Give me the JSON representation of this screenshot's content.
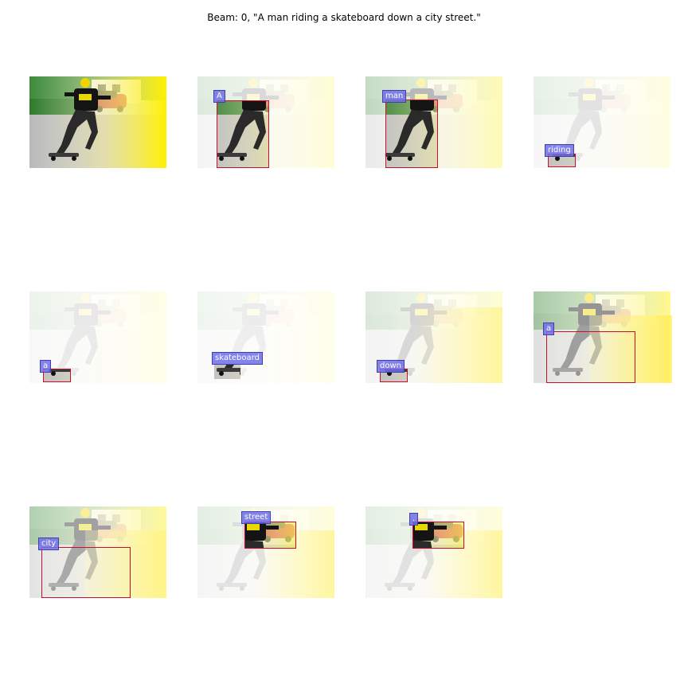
{
  "title": "Beam: 0, \"A man riding a skateboard down a city street.\"",
  "words": [
    "A",
    "man",
    "riding",
    "a",
    "skateboard",
    "down",
    "a",
    "city",
    "street",
    "."
  ],
  "colors": {
    "box_outline": "#c8102e",
    "tag_fill": "#6e6ee6",
    "heat": "#fff04a"
  }
}
